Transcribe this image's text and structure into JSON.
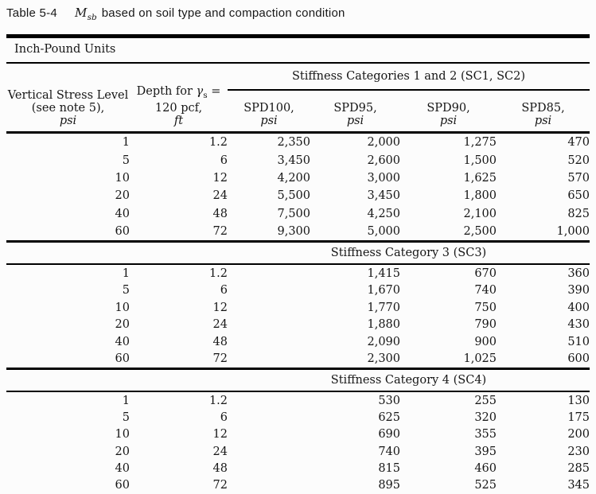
{
  "title": {
    "prefix": "Table 5-4",
    "variable": "M",
    "variable_sub": "sb",
    "rest": "based on soil type and compaction condition"
  },
  "units_banner": "Inch-Pound Units",
  "table": {
    "spanner": "Stiffness Categories 1 and 2 (SC1, SC2)",
    "col_headers": {
      "col1": {
        "line1": "Vertical Stress Level",
        "line2": "(see note 5),",
        "unit": "psi"
      },
      "col2": {
        "line1_pre": "Depth for ",
        "line1_sym": "γ",
        "line1_sub": "s",
        "line1_post": " =",
        "line2": "120 pcf,",
        "unit": "ft"
      },
      "spd": [
        {
          "name": "SPD100,",
          "unit": "psi"
        },
        {
          "name": "SPD95,",
          "unit": "psi"
        },
        {
          "name": "SPD90,",
          "unit": "psi"
        },
        {
          "name": "SPD85,",
          "unit": "psi"
        }
      ]
    },
    "sections": [
      {
        "label": null,
        "rows": [
          [
            "1",
            "1.2",
            "2,350",
            "2,000",
            "1,275",
            "470"
          ],
          [
            "5",
            "6",
            "3,450",
            "2,600",
            "1,500",
            "520"
          ],
          [
            "10",
            "12",
            "4,200",
            "3,000",
            "1,625",
            "570"
          ],
          [
            "20",
            "24",
            "5,500",
            "3,450",
            "1,800",
            "650"
          ],
          [
            "40",
            "48",
            "7,500",
            "4,250",
            "2,100",
            "825"
          ],
          [
            "60",
            "72",
            "9,300",
            "5,000",
            "2,500",
            "1,000"
          ]
        ]
      },
      {
        "label": "Stiffness Category 3 (SC3)",
        "rows": [
          [
            "1",
            "1.2",
            "",
            "1,415",
            "670",
            "360"
          ],
          [
            "5",
            "6",
            "",
            "1,670",
            "740",
            "390"
          ],
          [
            "10",
            "12",
            "",
            "1,770",
            "750",
            "400"
          ],
          [
            "20",
            "24",
            "",
            "1,880",
            "790",
            "430"
          ],
          [
            "40",
            "48",
            "",
            "2,090",
            "900",
            "510"
          ],
          [
            "60",
            "72",
            "",
            "2,300",
            "1,025",
            "600"
          ]
        ]
      },
      {
        "label": "Stiffness Category 4 (SC4)",
        "rows": [
          [
            "1",
            "1.2",
            "",
            "530",
            "255",
            "130"
          ],
          [
            "5",
            "6",
            "",
            "625",
            "320",
            "175"
          ],
          [
            "10",
            "12",
            "",
            "690",
            "355",
            "200"
          ],
          [
            "20",
            "24",
            "",
            "740",
            "395",
            "230"
          ],
          [
            "40",
            "48",
            "",
            "815",
            "460",
            "285"
          ],
          [
            "60",
            "72",
            "",
            "895",
            "525",
            "345"
          ]
        ]
      }
    ]
  },
  "colors": {
    "ink": "#161616",
    "rule": "#000000",
    "paper": "#fcfcfc"
  }
}
